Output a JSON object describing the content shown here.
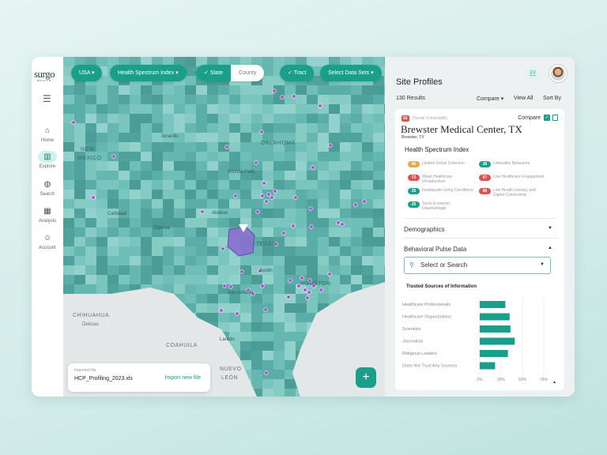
{
  "brand": {
    "name": "surgo",
    "sub": "HEALTH"
  },
  "sidebar": {
    "items": [
      {
        "label": "Home",
        "icon": "home-icon"
      },
      {
        "label": "Explore",
        "icon": "map-icon",
        "active": true
      },
      {
        "label": "Search",
        "icon": "search-globe-icon"
      },
      {
        "label": "Analysis",
        "icon": "analysis-icon"
      },
      {
        "label": "Account",
        "icon": "account-icon"
      }
    ]
  },
  "toolbar": {
    "country": "USA",
    "index": "Health Spectrum Index",
    "state": "State",
    "county": "County",
    "tract": "Tract",
    "datasets": "Select Data Sets"
  },
  "map": {
    "labels": {
      "nm": "NEW",
      "nm2": "MEXICO",
      "amarillo": "Amarillo",
      "ok": "OKLAHOMA",
      "wichita": "Wichita Falls",
      "carlsbad": "Carlsbad",
      "odessa": "Odessa",
      "abilene": "Abilene",
      "texas": "TEXAS",
      "austin": "Austin",
      "sa": "San Antonio",
      "houston": "HOUSTON",
      "chihuahua": "CHIHUAHUA",
      "delicias": "Delicias",
      "coahuila": "COAHUILA",
      "laredo": "Laredo",
      "nl": "NUEVO",
      "nl2": "LEÓN"
    },
    "colors": {
      "base": "#62b5ae",
      "marker": "#b04fd0",
      "selected": "#8a6fd0"
    }
  },
  "file": {
    "label": "Imported file",
    "name": "HCP_Profiling_2023.xls",
    "action": "Import new file"
  },
  "fab": "+",
  "panel": {
    "title": "Site Profiles",
    "results": "130 Results",
    "compare": "Compare ▾",
    "view_all": "View All",
    "sort_by": "Sort By"
  },
  "profile": {
    "overall_score": "62",
    "overall_label": "Overall Vulnerability",
    "compare": "Compare",
    "name": "Brewster Medical Center, TX",
    "city": "Brewster, TX",
    "hsi_title": "Health Spectrum Index",
    "scores": [
      {
        "value": "66",
        "label": "Limited Social Cohesion",
        "color": "#e8a94f"
      },
      {
        "value": "36",
        "label": "Unhealthy Behaviors",
        "color": "#1aa08a"
      },
      {
        "value": "72",
        "label": "Weak Healthcare Infrastructure",
        "color": "#d9534f"
      },
      {
        "value": "67",
        "label": "Low Healthcare Engagement",
        "color": "#d9534f"
      },
      {
        "value": "25",
        "label": "Inadequate Living Conditions",
        "color": "#1aa08a"
      },
      {
        "value": "86",
        "label": "Low Health Literacy and Digital Connectivity",
        "color": "#d9534f"
      },
      {
        "value": "25",
        "label": "Socio Economic Disadvantage",
        "color": "#1aa08a"
      }
    ],
    "demographics": "Demographics",
    "behavioral": "Behavioral Pulse Data",
    "search_placeholder": "Select or Search"
  },
  "chart_data": {
    "type": "bar",
    "orientation": "horizontal",
    "title": "Trusted Sources of Information",
    "categories": [
      "Healthcare Professionals",
      "Healthcare Organizations",
      "Scientists",
      "Journalists",
      "Religious Leaders",
      "Does Not Trust Any Sources"
    ],
    "values": [
      30,
      35,
      36,
      41,
      33,
      18
    ],
    "xlim": [
      0,
      75
    ],
    "ticks": [
      "0%",
      "25%",
      "50%",
      "75%"
    ],
    "tick_values": [
      0,
      25,
      50,
      75
    ],
    "grid": true,
    "color": "#1aa08a"
  }
}
